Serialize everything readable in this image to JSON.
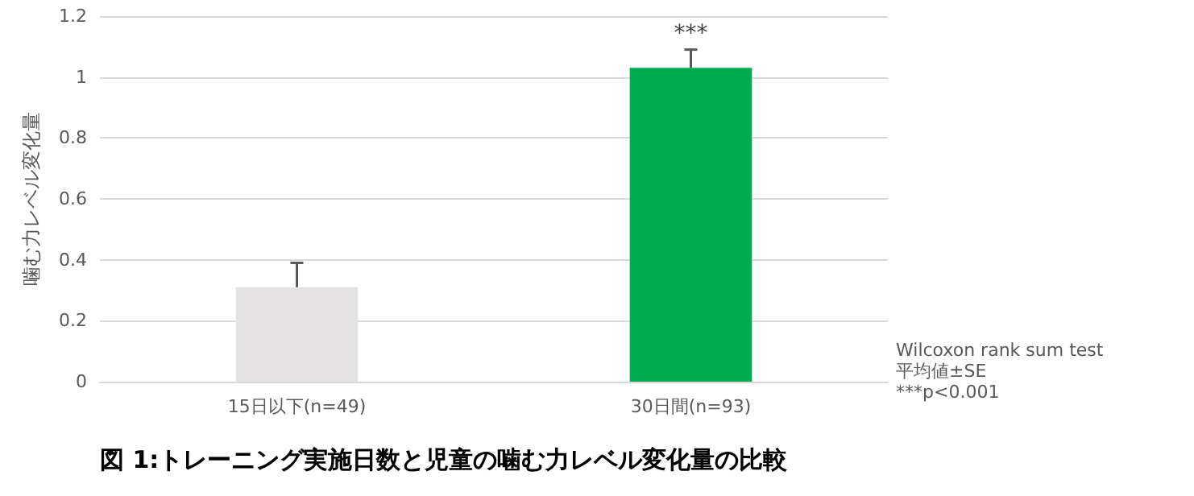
{
  "chart_data": {
    "type": "bar",
    "title": "図 1:トレーニング実施日数と児童の噛む力レベル変化量の比較",
    "ylabel": "噛む力レベル変化量",
    "categories": [
      "15日以下(n=49)",
      "30日間(n=93)"
    ],
    "values": [
      0.31,
      1.03
    ],
    "colors": [
      "#e4e2e2",
      "#00aa4f"
    ],
    "errors": [
      [
        0.31,
        0.39
      ],
      [
        1.03,
        1.09
      ]
    ],
    "ylim": [
      0,
      1.2
    ],
    "yticks": [
      0,
      0.2,
      0.4,
      0.6,
      0.8,
      1,
      1.2
    ],
    "grid": "y",
    "annotations": [
      {
        "text": "***",
        "x": "30日間(n=93)",
        "y": 1.09
      },
      "Wilcoxon rank sum test",
      "平均値±SE",
      "***p<0.001"
    ]
  }
}
